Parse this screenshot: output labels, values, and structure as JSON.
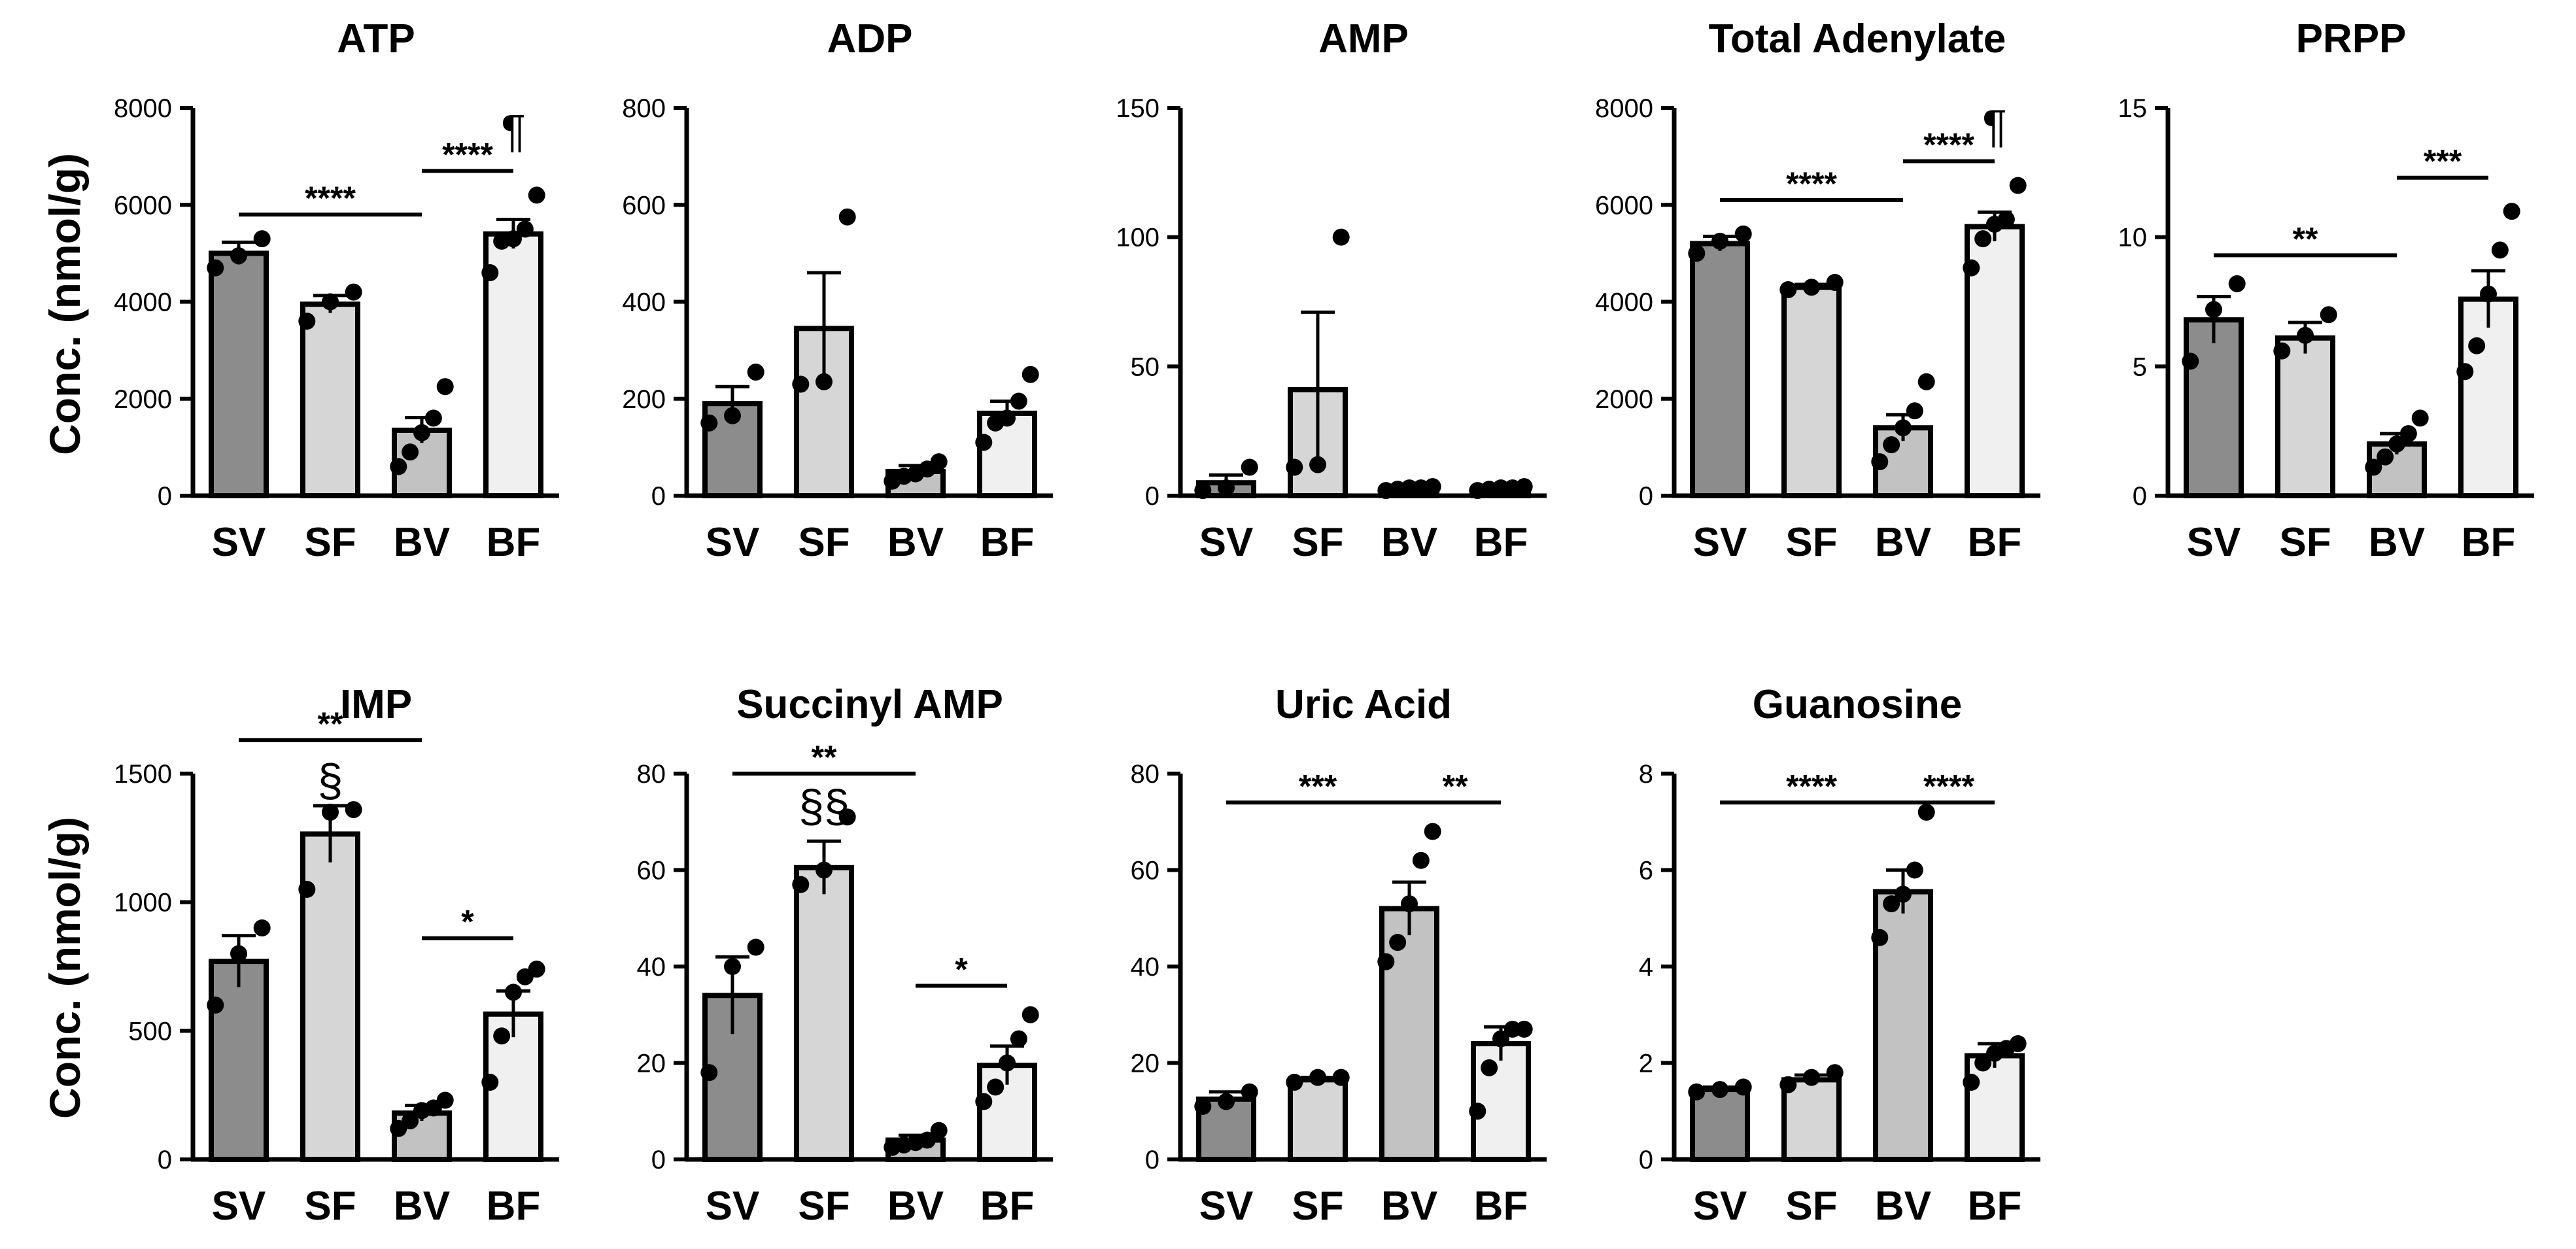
{
  "figure": {
    "ylabel_top": "Conc. (nmol/g)",
    "ylabel_bottom": "Conc. (nmol/g)"
  },
  "colors": {
    "SV": "#8c8c8c",
    "SF": "#d6d6d6",
    "BV": "#c2c2c2",
    "BF": "#f0f0f0",
    "stroke": "#000000"
  },
  "chart_data": [
    {
      "type": "bar",
      "title": "ATP",
      "ylabel": "Conc. (nmol/g)",
      "ylim": [
        0,
        8000
      ],
      "yticks": [
        0,
        2000,
        4000,
        6000,
        8000
      ],
      "categories": [
        "SV",
        "SF",
        "BV",
        "BF"
      ],
      "values": [
        5000,
        3950,
        1350,
        5400
      ],
      "errors": [
        230,
        180,
        260,
        300
      ],
      "points": [
        [
          4700,
          4950,
          5300
        ],
        [
          3600,
          4000,
          4200
        ],
        [
          600,
          900,
          1300,
          1600,
          2250
        ],
        [
          4600,
          5250,
          5300,
          5500,
          6200
        ]
      ],
      "significance": [
        {
          "from": 0,
          "to": 2,
          "label": "****",
          "y": 5800
        },
        {
          "from": 2,
          "to": 3,
          "label": "****",
          "y": 6700
        }
      ],
      "symbols": [
        {
          "bar": 3,
          "label": "¶",
          "y": 7500
        }
      ]
    },
    {
      "type": "bar",
      "title": "ADP",
      "ylabel": "",
      "ylim": [
        0,
        800
      ],
      "yticks": [
        0,
        200,
        400,
        600,
        800
      ],
      "categories": [
        "SV",
        "SF",
        "BV",
        "BF"
      ],
      "values": [
        190,
        345,
        50,
        170
      ],
      "errors": [
        35,
        115,
        12,
        25
      ],
      "points": [
        [
          150,
          165,
          255
        ],
        [
          230,
          235,
          575
        ],
        [
          30,
          40,
          45,
          55,
          70
        ],
        [
          110,
          150,
          160,
          195,
          250
        ]
      ],
      "significance": [],
      "symbols": []
    },
    {
      "type": "bar",
      "title": "AMP",
      "ylabel": "",
      "ylim": [
        0,
        150
      ],
      "yticks": [
        0,
        50,
        100,
        150
      ],
      "categories": [
        "SV",
        "SF",
        "BV",
        "BF"
      ],
      "values": [
        5,
        41,
        3,
        3
      ],
      "errors": [
        3,
        30,
        0.5,
        0.5
      ],
      "points": [
        [
          2,
          3,
          11
        ],
        [
          11,
          12,
          100
        ],
        [
          2,
          2.5,
          3,
          3,
          3.5
        ],
        [
          2,
          2.5,
          3,
          3,
          3.5
        ]
      ],
      "significance": [],
      "symbols": []
    },
    {
      "type": "bar",
      "title": "Total Adenylate",
      "ylabel": "",
      "ylim": [
        0,
        8000
      ],
      "yticks": [
        0,
        2000,
        4000,
        6000,
        8000
      ],
      "categories": [
        "SV",
        "SF",
        "BV",
        "BF"
      ],
      "values": [
        5200,
        4300,
        1400,
        5550
      ],
      "errors": [
        150,
        60,
        270,
        300
      ],
      "points": [
        [
          5000,
          5250,
          5400
        ],
        [
          4250,
          4300,
          4400
        ],
        [
          700,
          1050,
          1400,
          1750,
          2350
        ],
        [
          4700,
          5300,
          5600,
          5700,
          6400
        ]
      ],
      "significance": [
        {
          "from": 0,
          "to": 2,
          "label": "****",
          "y": 6100
        },
        {
          "from": 2,
          "to": 3,
          "label": "****",
          "y": 6900
        }
      ],
      "symbols": [
        {
          "bar": 3,
          "label": "¶",
          "y": 7600
        }
      ]
    },
    {
      "type": "bar",
      "title": "PRPP",
      "ylabel": "",
      "ylim": [
        0,
        15
      ],
      "yticks": [
        0,
        5,
        10,
        15
      ],
      "categories": [
        "SV",
        "SF",
        "BV",
        "BF"
      ],
      "values": [
        6.8,
        6.1,
        2.0,
        7.6
      ],
      "errors": [
        0.9,
        0.6,
        0.4,
        1.1
      ],
      "points": [
        [
          5.2,
          7.2,
          8.2
        ],
        [
          5.6,
          6.2,
          7.0
        ],
        [
          1.1,
          1.5,
          2.0,
          2.4,
          3.0
        ],
        [
          4.8,
          5.8,
          7.8,
          9.5,
          11.0
        ]
      ],
      "significance": [
        {
          "from": 0,
          "to": 2,
          "label": "**",
          "y": 9.3
        },
        {
          "from": 2,
          "to": 3,
          "label": "***",
          "y": 12.3
        }
      ],
      "symbols": []
    },
    {
      "type": "bar",
      "title": "IMP",
      "ylabel": "Conc. (nmol/g)",
      "ylim": [
        0,
        1500
      ],
      "yticks": [
        0,
        500,
        1000,
        1500
      ],
      "categories": [
        "SV",
        "SF",
        "BV",
        "BF"
      ],
      "values": [
        770,
        1265,
        180,
        565
      ],
      "errors": [
        100,
        110,
        30,
        90
      ],
      "points": [
        [
          600,
          800,
          900
        ],
        [
          1050,
          1350,
          1360
        ],
        [
          120,
          150,
          190,
          200,
          230
        ],
        [
          300,
          480,
          650,
          710,
          740
        ]
      ],
      "significance": [
        {
          "from": 0,
          "to": 2,
          "label": "**",
          "y": 1630
        },
        {
          "from": 2,
          "to": 3,
          "label": "*",
          "y": 860
        }
      ],
      "symbols": [
        {
          "bar": 1,
          "label": "§",
          "y": 1470
        }
      ]
    },
    {
      "type": "bar",
      "title": "Succinyl AMP",
      "ylabel": "",
      "ylim": [
        0,
        80
      ],
      "yticks": [
        0,
        20,
        40,
        60,
        80
      ],
      "categories": [
        "SV",
        "SF",
        "BV",
        "BF"
      ],
      "values": [
        34,
        60.5,
        4,
        19.5
      ],
      "errors": [
        8,
        5.5,
        1,
        4
      ],
      "points": [
        [
          18,
          40,
          44
        ],
        [
          57,
          60,
          71
        ],
        [
          2.5,
          3,
          3.5,
          4,
          6
        ],
        [
          12,
          15,
          20,
          25,
          30
        ]
      ],
      "significance": [
        {
          "from": 0,
          "to": 2,
          "label": "**",
          "y": 80
        },
        {
          "from": 2,
          "to": 3,
          "label": "*",
          "y": 36
        }
      ],
      "symbols": [
        {
          "bar": 1,
          "label": "§§",
          "y": 73
        }
      ]
    },
    {
      "type": "bar",
      "title": "Uric Acid",
      "ylabel": "",
      "ylim": [
        0,
        80
      ],
      "yticks": [
        0,
        20,
        40,
        60,
        80
      ],
      "categories": [
        "SV",
        "SF",
        "BV",
        "BF"
      ],
      "values": [
        12.5,
        16.5,
        52,
        24
      ],
      "errors": [
        1.5,
        0.5,
        5.5,
        3.5
      ],
      "points": [
        [
          11,
          12,
          14
        ],
        [
          16,
          17,
          17
        ],
        [
          41,
          45,
          53,
          62,
          68
        ],
        [
          10,
          19,
          25,
          27,
          27
        ]
      ],
      "significance": [
        {
          "from": 0,
          "to": 2,
          "label": "***",
          "y": 74
        },
        {
          "from": 2,
          "to": 3,
          "label": "**",
          "y": 74
        }
      ],
      "symbols": []
    },
    {
      "type": "bar",
      "title": "Guanosine",
      "ylabel": "",
      "ylim": [
        0,
        8
      ],
      "yticks": [
        0,
        2,
        4,
        6,
        8
      ],
      "categories": [
        "SV",
        "SF",
        "BV",
        "BF"
      ],
      "values": [
        1.45,
        1.65,
        5.55,
        2.15
      ],
      "errors": [
        0.05,
        0.1,
        0.45,
        0.25
      ],
      "points": [
        [
          1.4,
          1.45,
          1.5
        ],
        [
          1.55,
          1.7,
          1.8
        ],
        [
          4.6,
          5.3,
          5.5,
          6.0,
          7.2
        ],
        [
          1.6,
          2.0,
          2.2,
          2.3,
          2.4
        ]
      ],
      "significance": [
        {
          "from": 0,
          "to": 2,
          "label": "****",
          "y": 7.4
        },
        {
          "from": 2,
          "to": 3,
          "label": "****",
          "y": 7.4
        }
      ],
      "symbols": []
    }
  ]
}
